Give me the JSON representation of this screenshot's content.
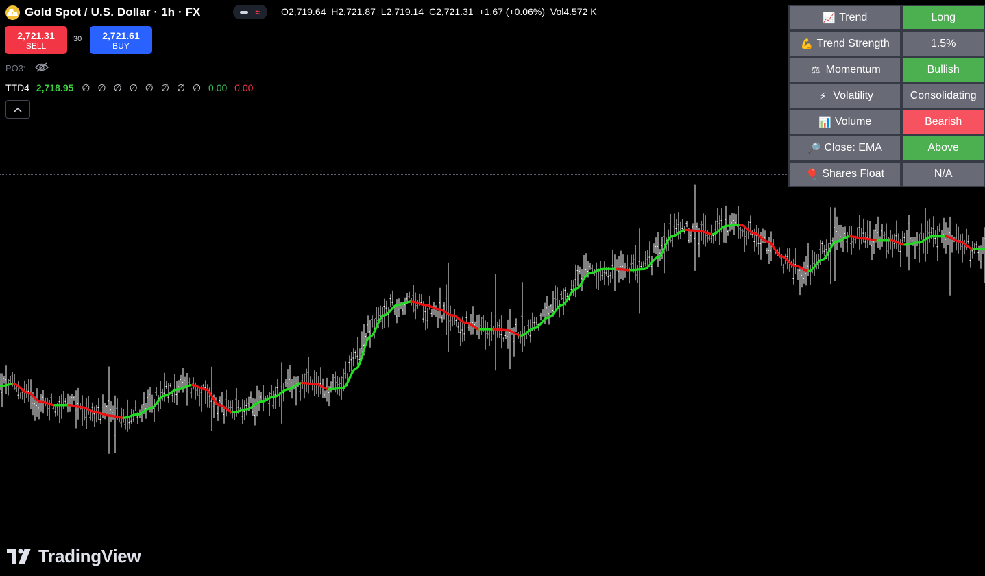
{
  "header": {
    "symbol_title": "Gold Spot / U.S. Dollar",
    "interval": "1h",
    "exchange": "FX",
    "ohlc": {
      "open": "O2,719.64",
      "high": "H2,721.87",
      "low": "L2,719.14",
      "close": "C2,721.31",
      "change": "+1.67 (+0.06%)",
      "volume": "Vol4.572 K"
    }
  },
  "trade": {
    "sell_price": "2,721.31",
    "sell_label": "SELL",
    "spread": "30",
    "buy_price": "2,721.61",
    "buy_label": "BUY"
  },
  "indicators": {
    "po3_label": "PO3",
    "ttd": {
      "name": "TTD4",
      "price": "2,718.95",
      "empty_values": [
        "∅",
        "∅",
        "∅",
        "∅",
        "∅",
        "∅",
        "∅",
        "∅"
      ],
      "green_value": "0.00",
      "red_value": "0.00"
    }
  },
  "stats_table": [
    {
      "icon": "chart-up-icon",
      "glyph": "📈",
      "label": "Trend",
      "value": "Long",
      "status": "green"
    },
    {
      "icon": "flexed-biceps-icon",
      "glyph": "💪",
      "label": "Trend Strength",
      "value": "1.5%",
      "status": "gray"
    },
    {
      "icon": "balance-scale-icon",
      "glyph": "⚖",
      "label": "Momentum",
      "value": "Bullish",
      "status": "green"
    },
    {
      "icon": "lightning-icon",
      "glyph": "⚡",
      "label": "Volatility",
      "value": "Consolidating",
      "status": "gray"
    },
    {
      "icon": "bar-chart-icon",
      "glyph": "📊",
      "label": "Volume",
      "value": "Bearish",
      "status": "red"
    },
    {
      "icon": "magnifier-icon",
      "glyph": "🔎",
      "label": "Close: EMA",
      "value": "Above",
      "status": "green"
    },
    {
      "icon": "balloon-icon",
      "glyph": "🎈",
      "label": "Shares Float",
      "value": "N/A",
      "status": "muted"
    }
  ],
  "colors": {
    "background": "#000000",
    "ema_up": "#22dd22",
    "ema_down": "#ee1111",
    "bars": "#ffffff",
    "sell": "#f23645",
    "buy": "#2962ff"
  },
  "branding": {
    "logo_text": "TradingView"
  },
  "chart_data": {
    "type": "line",
    "x": [
      0,
      20,
      40,
      60,
      80,
      100,
      120,
      140,
      160,
      180,
      200,
      220,
      240,
      260,
      280,
      300,
      320,
      340,
      360,
      380,
      400,
      420,
      440,
      460,
      480,
      500,
      520,
      540,
      560,
      580,
      600,
      620,
      640,
      660,
      680,
      700,
      720,
      740,
      760,
      780,
      800,
      820,
      840,
      860,
      880,
      900,
      920,
      940,
      960,
      980,
      1000,
      1020,
      1040,
      1060,
      1080,
      1100,
      1120,
      1140,
      1160,
      1180,
      1200,
      1220,
      1240,
      1260,
      1280,
      1300,
      1320,
      1340,
      1360,
      1380,
      1400,
      1420,
      1437
    ],
    "series": [
      {
        "values": [
          2718.3,
          2718.5,
          2717.7,
          2716.8,
          2716.5,
          2716.5,
          2716.3,
          2715.8,
          2715.5,
          2715.3,
          2715.6,
          2716.2,
          2717.4,
          2718.0,
          2718.4,
          2718.0,
          2716.5,
          2715.8,
          2716.1,
          2716.8,
          2717.3,
          2718.0,
          2718.6,
          2718.5,
          2718.0,
          2718.1,
          2720.0,
          2723.0,
          2725.0,
          2726.0,
          2726.3,
          2726.0,
          2725.6,
          2725.0,
          2724.3,
          2723.7,
          2723.7,
          2723.6,
          2723.1,
          2723.8,
          2724.8,
          2726.0,
          2727.5,
          2729.0,
          2729.4,
          2729.4,
          2729.3,
          2729.4,
          2730.5,
          2732.5,
          2733.1,
          2733.0,
          2732.7,
          2733.5,
          2733.6,
          2732.8,
          2732.0,
          2730.6,
          2729.7,
          2729.2,
          2730.3,
          2732.0,
          2732.5,
          2732.3,
          2732.1,
          2732.1,
          2731.7,
          2731.9,
          2732.5,
          2732.5,
          2732.0,
          2731.3,
          2731.3
        ]
      }
    ]
  }
}
